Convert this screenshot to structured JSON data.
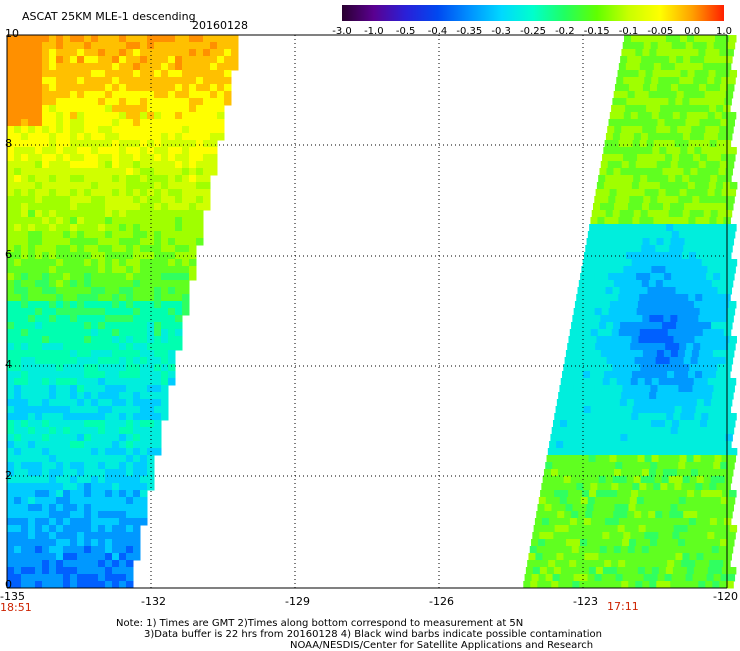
{
  "title": "ASCAT 25KM MLE-1 descending",
  "date": "20160128",
  "colorbar": {
    "labels": [
      "-3.0",
      "-1.0",
      "-0.5",
      "-0.4",
      "-0.35",
      "-0.3",
      "-0.25",
      "-0.2",
      "-0.15",
      "-0.1",
      "-0.05",
      "0.0",
      "1.0"
    ],
    "colors": [
      "#2a0030",
      "#5a0090",
      "#2a20d8",
      "#0048f0",
      "#0090ff",
      "#00d8ff",
      "#00ffcc",
      "#20ff60",
      "#60ff00",
      "#c8ff00",
      "#ffff00",
      "#ffa000",
      "#ff2000"
    ]
  },
  "axes": {
    "y_ticks": [
      "0",
      "2",
      "4",
      "6",
      "8",
      "10"
    ],
    "x_ticks": [
      "-135",
      "-132",
      "-129",
      "-126",
      "-123",
      "-120"
    ]
  },
  "times": {
    "left": "18:51",
    "right": "17:11"
  },
  "notes": [
    "Note: 1) Times are GMT 2)Times along bottom correspond to measurement at 5N",
    "3)Data buffer is 22 hrs from 20160128 4) Black wind barbs indicate possible contamination",
    "NOAA/NESDIS/Center for Satellite Applications and Research"
  ]
}
